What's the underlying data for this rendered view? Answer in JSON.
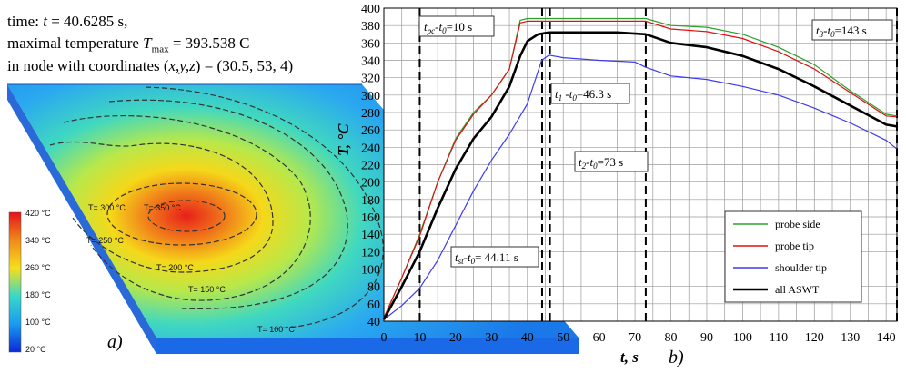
{
  "header": {
    "line1_prefix": "time: ",
    "line1_var": "t",
    "line1_rest": " = 40.6285 s,",
    "line2_prefix": "maximal temperature ",
    "line2_var": "T",
    "line2_sub": "max",
    "line2_rest": " = 393.538 C",
    "line3_prefix": "in node with coordinates (",
    "line3_vars": "x,y,z",
    "line3_rest": ") = (30.5, 53, 4)"
  },
  "panel_a": {
    "label": "a)",
    "isotherms": [
      "T= 350 °C",
      "T= 300 °C",
      "T= 250 °C",
      "T= 200 °C",
      "T= 150 °C",
      "T= 100 °C"
    ],
    "colorbar": {
      "labels": [
        "420 °C",
        "340 °C",
        "260 °C",
        "180 °C",
        "100 °C",
        "20 °C"
      ],
      "colors": [
        "#e8101a",
        "#f08a1a",
        "#f5e01a",
        "#38d8c8",
        "#1a9af0",
        "#0a2ad8"
      ]
    }
  },
  "panel_b_label": "b)",
  "chart_data": {
    "type": "line",
    "xlabel": "t,  s",
    "ylabel": "T, °C",
    "xlim": [
      0,
      143
    ],
    "ylim": [
      40,
      400
    ],
    "xticks": [
      0,
      10,
      20,
      30,
      40,
      50,
      60,
      70,
      80,
      90,
      100,
      110,
      120,
      130,
      140
    ],
    "yticks": [
      40,
      60,
      80,
      100,
      120,
      140,
      160,
      180,
      200,
      220,
      240,
      260,
      280,
      300,
      320,
      340,
      360,
      380,
      400
    ],
    "grid": true,
    "legend_position": "lower-right",
    "series": [
      {
        "name": "probe side",
        "color": "#2ca02c",
        "x": [
          0,
          5,
          10,
          15,
          20,
          25,
          30,
          35,
          38,
          40,
          45,
          55,
          65,
          73,
          80,
          90,
          100,
          110,
          120,
          130,
          140,
          143
        ],
        "y": [
          44,
          90,
          140,
          200,
          250,
          280,
          300,
          330,
          386,
          388,
          388,
          388,
          388,
          388,
          380,
          378,
          370,
          355,
          335,
          305,
          278,
          276
        ]
      },
      {
        "name": "probe tip",
        "color": "#e01010",
        "x": [
          0,
          5,
          10,
          15,
          20,
          25,
          30,
          35,
          38,
          40,
          45,
          55,
          65,
          73,
          80,
          90,
          100,
          110,
          120,
          130,
          140,
          143
        ],
        "y": [
          44,
          90,
          138,
          200,
          248,
          278,
          300,
          330,
          383,
          385,
          385,
          385,
          385,
          385,
          376,
          373,
          365,
          350,
          330,
          303,
          276,
          275
        ]
      },
      {
        "name": "shoulder tip",
        "color": "#3a3af0",
        "x": [
          0,
          5,
          10,
          15,
          20,
          25,
          30,
          35,
          40,
          44,
          46,
          50,
          60,
          70,
          73,
          80,
          90,
          100,
          110,
          120,
          130,
          140,
          143
        ],
        "y": [
          42,
          58,
          78,
          110,
          150,
          190,
          225,
          255,
          290,
          340,
          346,
          343,
          340,
          338,
          332,
          322,
          318,
          310,
          300,
          285,
          268,
          248,
          238
        ]
      },
      {
        "name": "all ASWT",
        "color": "#000000",
        "x": [
          0,
          5,
          10,
          15,
          20,
          25,
          30,
          35,
          38,
          40,
          43,
          46,
          55,
          65,
          73,
          80,
          90,
          100,
          110,
          120,
          130,
          140,
          143
        ],
        "y": [
          42,
          80,
          120,
          170,
          215,
          250,
          275,
          310,
          345,
          362,
          370,
          372,
          372,
          372,
          370,
          360,
          355,
          345,
          330,
          310,
          288,
          266,
          264
        ]
      }
    ],
    "vlines": [
      10,
      44.11,
      46.3,
      73,
      143
    ],
    "annotations": [
      {
        "text": "t_pc - t_0 = 10 s",
        "x": 10,
        "y": 393
      },
      {
        "text": "t_1 - t_0 = 46.3 s",
        "x": 46.3,
        "y": 320
      },
      {
        "text": "t_2 - t_0 = 73 s",
        "x": 73,
        "y": 240
      },
      {
        "text": "t_st - t_0 = 44.11 s",
        "x": 44.11,
        "y": 110
      },
      {
        "text": "t_3 - t_0 = 143 s",
        "x": 143,
        "y": 375
      }
    ],
    "annotation_labels": {
      "tpc": {
        "a": "t",
        "as": "pc",
        "b": "-t",
        "bs": "0",
        "c": "=10 s"
      },
      "t1": {
        "a": "t",
        "as": "1",
        "b": " -t",
        "bs": "0",
        "c": "=46.3 s"
      },
      "t2": {
        "a": "t",
        "as": "2",
        "b": "-t",
        "bs": "0",
        "c": "=73  s"
      },
      "tst": {
        "a": "t",
        "as": "st",
        "b": "-t",
        "bs": "0",
        "c": "= 44.11 s"
      },
      "t3": {
        "a": "t",
        "as": "3",
        "b": "-t",
        "bs": "0",
        "c": "=143 s"
      }
    }
  }
}
